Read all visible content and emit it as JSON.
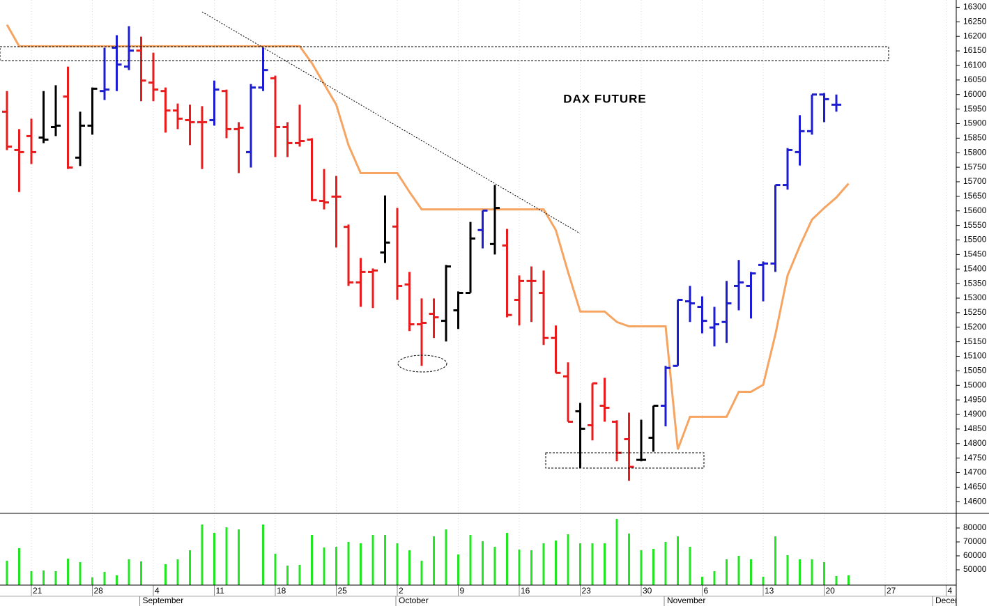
{
  "chart_data": {
    "type": "ohlc",
    "title": "DAX FUTURE",
    "categories": [
      null,
      null,
      "21",
      null,
      null,
      null,
      null,
      "28",
      null,
      null,
      null,
      null,
      "4",
      null,
      null,
      null,
      null,
      "11",
      null,
      null,
      null,
      null,
      "18",
      null,
      null,
      null,
      null,
      "25",
      null,
      null,
      null,
      null,
      "2",
      null,
      null,
      null,
      null,
      "9",
      null,
      null,
      null,
      null,
      "16",
      null,
      null,
      null,
      null,
      "23",
      null,
      null,
      null,
      null,
      "30",
      null,
      null,
      null,
      null,
      "6",
      null,
      null,
      null,
      null,
      "13",
      null,
      null,
      null,
      null,
      "20",
      null,
      null,
      null,
      null,
      "27",
      null,
      null,
      null,
      null,
      "4"
    ],
    "month_labels": [
      null,
      null,
      null,
      null,
      null,
      null,
      null,
      null,
      null,
      null,
      null,
      "September",
      null,
      null,
      null,
      null,
      null,
      null,
      null,
      null,
      null,
      null,
      null,
      null,
      null,
      null,
      null,
      null,
      null,
      null,
      null,
      null,
      "October",
      null,
      null,
      null,
      null,
      null,
      null,
      null,
      null,
      null,
      null,
      null,
      null,
      null,
      null,
      null,
      null,
      null,
      null,
      null,
      null,
      null,
      "November",
      null,
      null,
      null,
      null,
      null,
      null,
      null,
      null,
      null,
      null,
      null,
      null,
      null,
      null,
      null,
      null,
      null,
      null,
      null,
      null,
      null,
      "December",
      null
    ],
    "open": [
      15941,
      15809,
      15857,
      15852,
      15888,
      15993,
      15783,
      15893,
      16012,
      16161,
      16096,
      16151,
      16041,
      16012,
      15945,
      15912,
      15905,
      15912,
      16012,
      15881,
      15802,
      16024,
      16056,
      15888,
      15833,
      15845,
      15634,
      15649,
      15545,
      15354,
      15390,
      15457,
      15546,
      15347,
      15210,
      15246,
      15222,
      15258,
      15318,
      15534,
      15486,
      15481,
      15294,
      15359,
      15318,
      15163,
      15031,
      14911,
      14863,
      14930,
      14875,
      14815,
      14744,
      14820,
      14930,
      15067,
      15289,
      15270,
      15199,
      15218,
      15342,
      15342,
      15414,
      15419,
      15689,
      15802,
      15874,
      16000,
      15965,
      15960,
      null,
      null,
      null,
      null,
      null,
      null,
      null,
      null
    ],
    "high": [
      16012,
      15881,
      15917,
      16012,
      16032,
      16096,
      15941,
      16024,
      16161,
      16204,
      16235,
      16199,
      16144,
      16024,
      15969,
      15965,
      15960,
      16048,
      16017,
      15905,
      16036,
      16161,
      16065,
      15905,
      15965,
      15850,
      15744,
      15720,
      15553,
      15438,
      15402,
      15653,
      15610,
      15390,
      15299,
      15299,
      15414,
      15323,
      15562,
      15601,
      15689,
      15538,
      15378,
      15409,
      15395,
      15206,
      15079,
      14940,
      15007,
      15026,
      14880,
      14906,
      14882,
      14930,
      15067,
      15294,
      15342,
      15306,
      15270,
      15359,
      15431,
      15390,
      15426,
      15689,
      15816,
      15929,
      16000,
      16005,
      16000,
      16048,
      null,
      null,
      null,
      null,
      null,
      null,
      null,
      null
    ],
    "low": [
      15809,
      15665,
      15761,
      15833,
      15857,
      15744,
      15754,
      15862,
      15981,
      16012,
      16084,
      15977,
      15977,
      15869,
      15881,
      15826,
      15744,
      15893,
      15850,
      15730,
      15749,
      16012,
      15785,
      15785,
      15821,
      15634,
      15605,
      15474,
      15342,
      15270,
      15266,
      15421,
      15294,
      15187,
      15067,
      15163,
      15151,
      15194,
      15318,
      15471,
      15450,
      15234,
      15206,
      15218,
      15139,
      15043,
      14875,
      14715,
      14811,
      14875,
      14739,
      14672,
      14739,
      14772,
      14859,
      15067,
      15218,
      15179,
      15134,
      15146,
      15258,
      15230,
      15289,
      15390,
      15673,
      15756,
      15862,
      15905,
      15941,
      15957,
      null,
      null,
      null,
      null,
      null,
      null,
      null,
      null
    ],
    "close": [
      15821,
      15802,
      15802,
      15845,
      15893,
      15749,
      15893,
      16020,
      16017,
      16103,
      16151,
      16048,
      16017,
      15945,
      15917,
      15905,
      15905,
      16017,
      15881,
      15886,
      16024,
      16084,
      15888,
      15833,
      15840,
      15637,
      15629,
      15649,
      15354,
      15390,
      15395,
      15491,
      15342,
      15210,
      15215,
      15234,
      15409,
      15318,
      15505,
      15601,
      15610,
      15242,
      15359,
      15359,
      15163,
      15043,
      14875,
      14851,
      15007,
      14923,
      14768,
      14720,
      14744,
      14930,
      15060,
      15294,
      15282,
      15222,
      15210,
      15282,
      15354,
      15385,
      15419,
      15689,
      15809,
      15874,
      16000,
      15984,
      15965,
      16008,
      null,
      null,
      null,
      null,
      null,
      null,
      null,
      null
    ],
    "bar_colors": "rrrkkrkkbbbrrrrrrbrrbbrrrrrrrrrkrrrrkkkbkrrrrrrkrrrrkkbbbbbbbbbbbbbbb",
    "palette": {
      "r": "#e81c1c",
      "k": "#000000",
      "b": "#1c1cd0"
    },
    "line": {
      "color": "#f5a462",
      "values": [
        16240,
        16166,
        16166,
        16166,
        16166,
        16166,
        16166,
        16166,
        16166,
        16166,
        16166,
        16166,
        16166,
        16166,
        16166,
        16166,
        16166,
        16166,
        16166,
        16166,
        16166,
        16166,
        16166,
        16166,
        16166,
        16108,
        16036,
        15965,
        15826,
        15730,
        15730,
        15730,
        15730,
        15665,
        15605,
        15605,
        15605,
        15605,
        15605,
        15605,
        15605,
        15605,
        15605,
        15605,
        15605,
        15534,
        15390,
        15254,
        15254,
        15254,
        15218,
        15203,
        15203,
        15203,
        15203,
        14780,
        14892,
        14892,
        14892,
        14892,
        14978,
        14978,
        15002,
        15175,
        15378,
        15479,
        15570,
        15610,
        15646,
        15694,
        null,
        null,
        null,
        null,
        null,
        null,
        null,
        null
      ]
    },
    "ylim": [
      14560,
      16325
    ],
    "yticks": [
      14600,
      14650,
      14700,
      14750,
      14800,
      14850,
      14900,
      14950,
      15000,
      15050,
      15100,
      15150,
      15200,
      15250,
      15300,
      15350,
      15400,
      15450,
      15500,
      15550,
      15600,
      15650,
      15700,
      15750,
      15800,
      15850,
      15900,
      15950,
      16000,
      16050,
      16100,
      16150,
      16200,
      16250,
      16300
    ],
    "volume": {
      "color": "#22e622",
      "values": [
        56500,
        65500,
        49000,
        49500,
        49000,
        58000,
        55500,
        44500,
        48500,
        46000,
        57500,
        56000,
        null,
        54000,
        57500,
        64000,
        82500,
        76500,
        80500,
        79000,
        null,
        82500,
        61500,
        53000,
        53500,
        75000,
        66000,
        66500,
        70000,
        69000,
        75000,
        75000,
        69000,
        64000,
        56500,
        74000,
        79000,
        61000,
        75000,
        70500,
        66500,
        76500,
        64500,
        64000,
        69000,
        71000,
        75500,
        69000,
        69000,
        69000,
        86500,
        76000,
        64000,
        65000,
        70000,
        74000,
        66500,
        45000,
        49000,
        57500,
        60000,
        57500,
        45000,
        74000,
        60500,
        57500,
        57500,
        55500,
        45500,
        46000,
        null,
        null,
        null,
        null,
        null,
        null,
        null,
        null
      ],
      "ylim": [
        39000,
        90500
      ],
      "yticks": [
        50000,
        60000,
        70000,
        80000
      ]
    },
    "grid": true
  }
}
